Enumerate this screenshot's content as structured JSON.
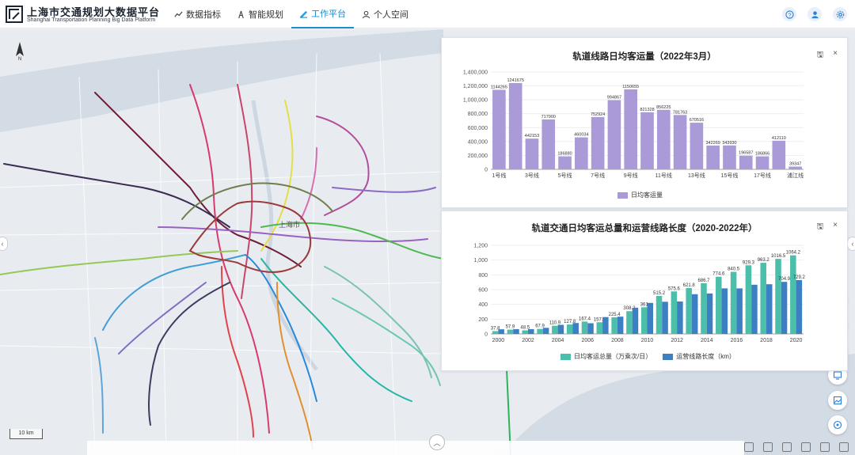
{
  "app": {
    "title": "上海市交通规划大数据平台",
    "subtitle": "Shanghai Transportation Planning Big Data Platform"
  },
  "nav": {
    "items": [
      {
        "label": "数据指标",
        "icon": "chart-line-icon",
        "active": false
      },
      {
        "label": "智能规划",
        "icon": "compass-icon",
        "active": false
      },
      {
        "label": "工作平台",
        "icon": "pen-icon",
        "active": true
      },
      {
        "label": "个人空间",
        "icon": "user-icon",
        "active": false
      }
    ]
  },
  "header_actions": [
    "help-icon",
    "user-icon",
    "settings-icon"
  ],
  "map": {
    "scale_label": "10 km",
    "city_label": "上海市",
    "colors": {
      "land": "#e8ecf1",
      "water": "#d3dbe5",
      "road": "#ffffff"
    }
  },
  "panel1": {
    "title": "轨道线路日均客运量（2022年3月）",
    "legend": "日均客运量",
    "tools": {
      "save": "🖫",
      "close": "×"
    }
  },
  "panel2": {
    "title": "轨道交通日均客运总量和运营线路长度（2020-2022年）",
    "legend_a": "日均客运总量（万乘次/日）",
    "legend_b": "运营线路长度（km）",
    "tools": {
      "save": "🖫",
      "close": "×"
    }
  },
  "chart_data": [
    {
      "type": "bar",
      "title": "轨道线路日均客运量（2022年3月）",
      "categories": [
        "1号线",
        "2号线",
        "3号线",
        "4号线",
        "5号线",
        "6号线",
        "7号线",
        "8号线",
        "9号线",
        "10号线",
        "11号线",
        "12号线",
        "13号线",
        "14号线",
        "15号线",
        "16号线",
        "17号线",
        "18号线",
        "浦江线"
      ],
      "tick_labels": [
        "1号线",
        "3号线",
        "5号线",
        "7号线",
        "9号线",
        "11号线",
        "13号线",
        "15号线",
        "17号线",
        "浦江线"
      ],
      "series": [
        {
          "name": "日均客运量",
          "color": "#ab9ad8",
          "values": [
            1144265,
            1241675,
            442153,
            717900,
            186880,
            460034,
            752924,
            994867,
            1150655,
            821328,
            856225,
            781763,
            670516,
            342269,
            343930,
            196587,
            186866,
            412110,
            39347
          ]
        }
      ],
      "ylim": [
        0,
        1400000
      ],
      "yticks": [
        0,
        200000,
        400000,
        600000,
        800000,
        1000000,
        1200000,
        1400000
      ],
      "ytick_labels": [
        "0",
        "200,000",
        "400,000",
        "600,000",
        "800,000",
        "1,000,000",
        "1,200,000",
        "1,400,000"
      ],
      "data_labels": [
        "1144265",
        "1241675",
        "442153",
        "717900",
        "186880",
        "460034",
        "752924",
        "994867",
        "1150655",
        "821328",
        "856225",
        "781763",
        "670516",
        "342269",
        "343930",
        "196587",
        "186866",
        "412110",
        "39347"
      ],
      "legend": "bottom-center",
      "grid": true
    },
    {
      "type": "bar",
      "title": "轨道交通日均客运总量和运营线路长度（2020-2022年）",
      "categories": [
        "2000",
        "2001",
        "2002",
        "2003",
        "2004",
        "2005",
        "2006",
        "2007",
        "2008",
        "2009",
        "2010",
        "2011",
        "2012",
        "2013",
        "2014",
        "2015",
        "2016",
        "2017",
        "2018",
        "2019",
        "2020"
      ],
      "tick_labels": [
        "2000",
        "2002",
        "2004",
        "2006",
        "2008",
        "2010",
        "2012",
        "2014",
        "2016",
        "2018",
        "2020"
      ],
      "series": [
        {
          "name": "日均客运总量（万乘次/日）",
          "color": "#4cbfaa",
          "values": [
            37.8,
            57.9,
            48.5,
            67.9,
            110.9,
            127.8,
            167.4,
            157.9,
            225.4,
            308.2,
            361.0,
            515.2,
            575.6,
            621.8,
            686.7,
            774.6,
            840.5,
            929.3,
            963.2,
            1016.5,
            1064.2
          ],
          "data_labels": [
            "37.8",
            "57.9",
            "48.5",
            "67.9",
            "110.9",
            "127.8",
            "167.4",
            "157.9",
            "225.4",
            "308.2",
            "361",
            "515.2",
            "575.6",
            "621.8",
            "686.7",
            "774.6",
            "840.5",
            "929.3",
            "963.2",
            "1016.5",
            "1064.2"
          ]
        },
        {
          "name": "运营线路长度（km）",
          "color": "#3d7fc3",
          "values": [
            62.8,
            65,
            65,
            82.5,
            123,
            147.8,
            145,
            228,
            234,
            355,
            420.3,
            435.5,
            439,
            538,
            548,
            617,
            617,
            666,
            673,
            705,
            729.2
          ],
          "data_labels": [
            "",
            "",
            "",
            "",
            "",
            "",
            "",
            "",
            "",
            "",
            "",
            "",
            "",
            "",
            "",
            "",
            "",
            "",
            "",
            "704.9",
            "729.2"
          ]
        }
      ],
      "ylim": [
        0,
        1200
      ],
      "yticks": [
        0,
        200,
        400,
        600,
        800,
        1000,
        1200
      ],
      "ytick_labels": [
        "0",
        "200",
        "400",
        "600",
        "800",
        "1,000",
        "1,200"
      ],
      "legend": "bottom-center",
      "grid": true
    }
  ],
  "side_tools": [
    "layers-map-icon",
    "info-icon",
    "layers-icon",
    "screen-icon",
    "image-icon",
    "target-icon"
  ],
  "bottom_tools": [
    "select-icon",
    "refresh-icon",
    "delete-icon",
    "fullscreen-icon",
    "window-icon",
    "search-icon"
  ]
}
